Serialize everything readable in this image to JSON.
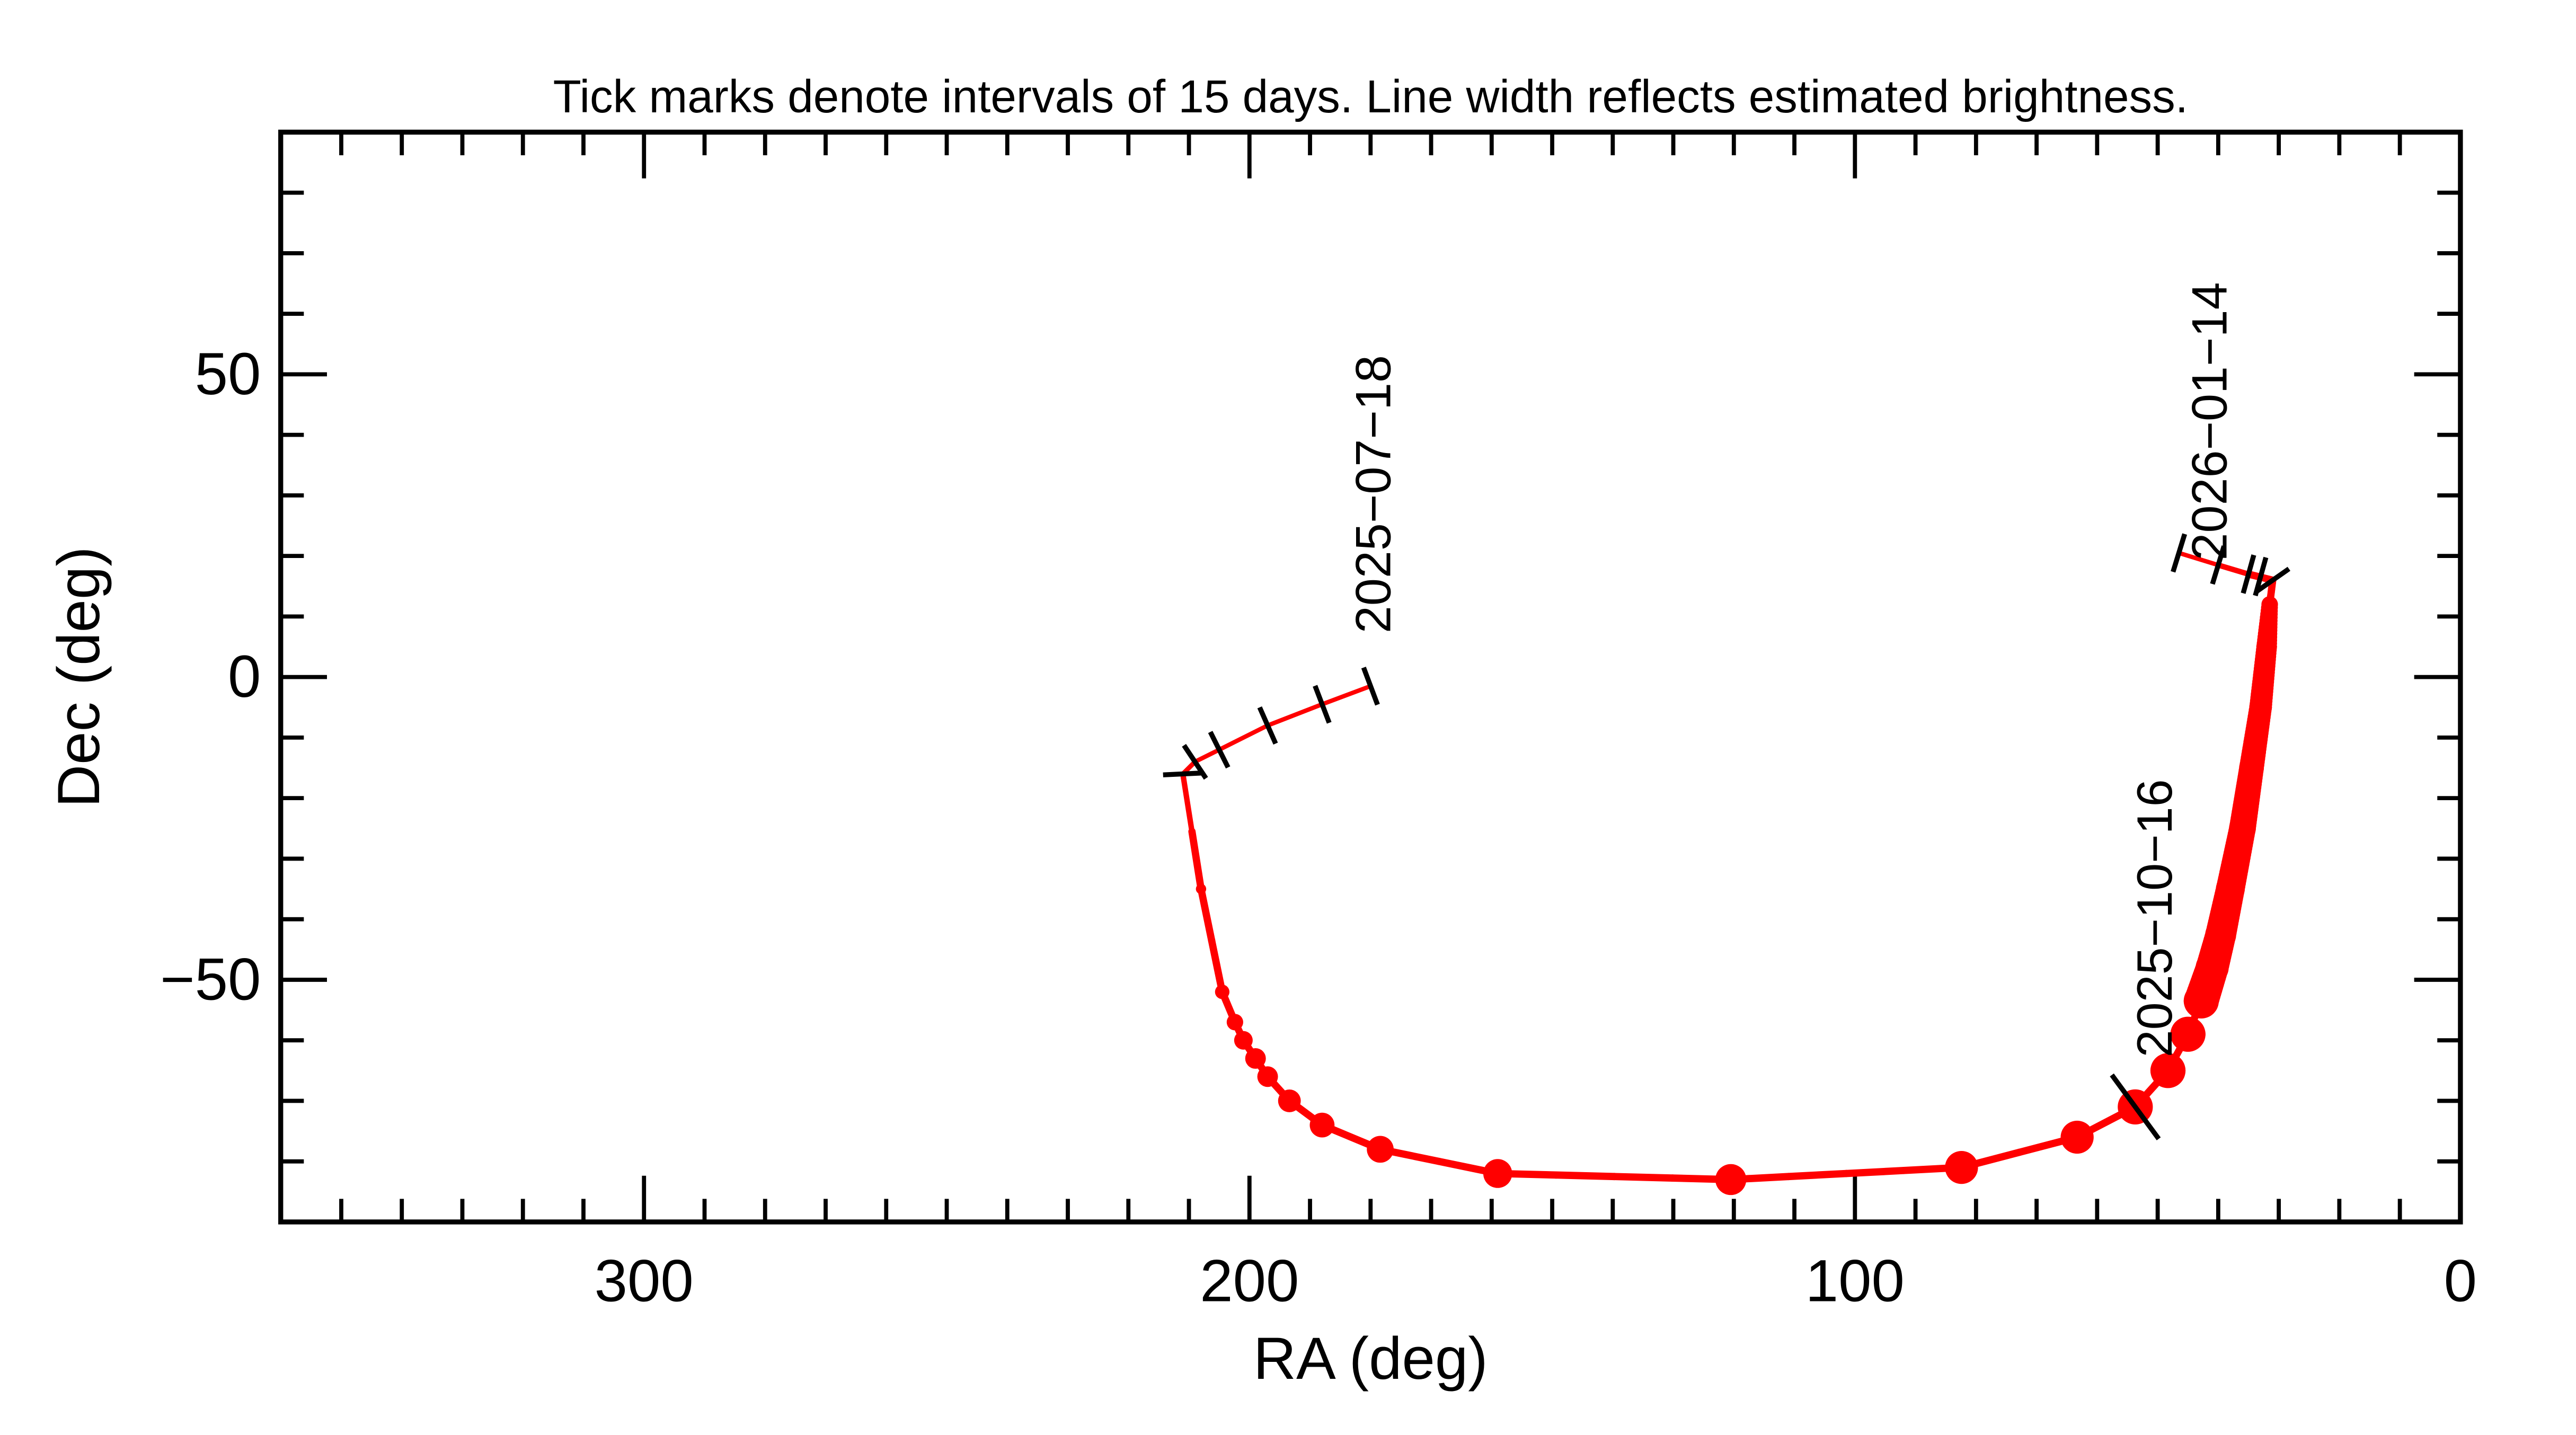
{
  "chart_data": {
    "type": "line",
    "title": "Tick marks denote intervals of 15 days.  Line width reflects estimated brightness.",
    "xlabel": "RA (deg)",
    "ylabel": "Dec (deg)",
    "xlim": [
      360,
      0
    ],
    "ylim": [
      -90,
      90
    ],
    "x_ticks": [
      300,
      200,
      100,
      0
    ],
    "x_tick_labels": [
      "300",
      "200",
      "100",
      "0"
    ],
    "y_ticks": [
      -50,
      0,
      50
    ],
    "y_tick_labels": [
      "−50",
      "0",
      "50"
    ],
    "x_minor_step": 10,
    "y_minor_step": 10,
    "grid": false,
    "line_color": "#ff0000",
    "tick_color": "#000000",
    "series": [
      {
        "points": [
          {
            "ra": 180,
            "dec": -1.5,
            "brightness_width": 1.2
          },
          {
            "ra": 188,
            "dec": -4.5,
            "brightness_width": 1.2
          },
          {
            "ra": 197,
            "dec": -8,
            "brightness_width": 1.2
          },
          {
            "ra": 205,
            "dec": -12,
            "brightness_width": 1.2
          },
          {
            "ra": 209,
            "dec": -14,
            "brightness_width": 1.3
          },
          {
            "ra": 211,
            "dec": -16,
            "brightness_width": 1.5
          },
          {
            "ra": 208,
            "dec": -35,
            "brightness_width": 2.5
          },
          {
            "ra": 204.5,
            "dec": -52,
            "brightness_width": 3.5
          },
          {
            "ra": 202.4,
            "dec": -57,
            "brightness_width": 4
          },
          {
            "ra": 201,
            "dec": -60,
            "brightness_width": 4.5
          },
          {
            "ra": 199,
            "dec": -63,
            "brightness_width": 5
          },
          {
            "ra": 197,
            "dec": -66,
            "brightness_width": 5
          },
          {
            "ra": 193.4,
            "dec": -70,
            "brightness_width": 5.5
          },
          {
            "ra": 188,
            "dec": -74,
            "brightness_width": 6
          },
          {
            "ra": 178.4,
            "dec": -78,
            "brightness_width": 6.5
          },
          {
            "ra": 159,
            "dec": -82,
            "brightness_width": 7
          },
          {
            "ra": 120.5,
            "dec": -83,
            "brightness_width": 7.5
          },
          {
            "ra": 82.4,
            "dec": -81,
            "brightness_width": 8
          },
          {
            "ra": 63.3,
            "dec": -76,
            "brightness_width": 8
          },
          {
            "ra": 53.7,
            "dec": -71,
            "brightness_width": 8.5
          },
          {
            "ra": 48.3,
            "dec": -65,
            "brightness_width": 8.5
          },
          {
            "ra": 45,
            "dec": -59,
            "brightness_width": 8.5
          },
          {
            "ra": 42.8,
            "dec": -53.5,
            "brightness_width": 8.5
          },
          {
            "ra": 41,
            "dec": -48,
            "brightness_width": 8
          },
          {
            "ra": 39.6,
            "dec": -42.6,
            "brightness_width": 7.5
          },
          {
            "ra": 38,
            "dec": -35,
            "brightness_width": 7
          },
          {
            "ra": 36,
            "dec": -25,
            "brightness_width": 6.5
          },
          {
            "ra": 34.5,
            "dec": -15,
            "brightness_width": 6
          },
          {
            "ra": 33,
            "dec": -5,
            "brightness_width": 5.5
          },
          {
            "ra": 32,
            "dec": 5,
            "brightness_width": 5
          },
          {
            "ra": 31.5,
            "dec": 12,
            "brightness_width": 4
          },
          {
            "ra": 31,
            "dec": 16,
            "brightness_width": 2
          },
          {
            "ra": 35,
            "dec": 17,
            "brightness_width": 1.5
          },
          {
            "ra": 40,
            "dec": 18.5,
            "brightness_width": 1.2
          },
          {
            "ra": 46.5,
            "dec": 20.5,
            "brightness_width": 1.2
          }
        ]
      }
    ],
    "interval_ticks": [
      {
        "ra": 180,
        "dec": -1.5
      },
      {
        "ra": 188,
        "dec": -4.5
      },
      {
        "ra": 197,
        "dec": -8
      },
      {
        "ra": 205,
        "dec": -12
      },
      {
        "ra": 209,
        "dec": -14
      },
      {
        "ra": 211,
        "dec": -16
      },
      {
        "ra": 53.7,
        "dec": -71
      },
      {
        "ra": 31,
        "dec": 16
      },
      {
        "ra": 33,
        "dec": 16.6
      },
      {
        "ra": 35,
        "dec": 17
      },
      {
        "ra": 40,
        "dec": 18.5
      },
      {
        "ra": 46.5,
        "dec": 20.5
      }
    ],
    "annotations": [
      {
        "text": "2025−07−18",
        "ra": 180,
        "dec": -1.5
      },
      {
        "text": "2025−10−16",
        "ra": 53.7,
        "dec": -71
      },
      {
        "text": "2026−01−14",
        "ra": 31,
        "dec": 16
      }
    ]
  }
}
